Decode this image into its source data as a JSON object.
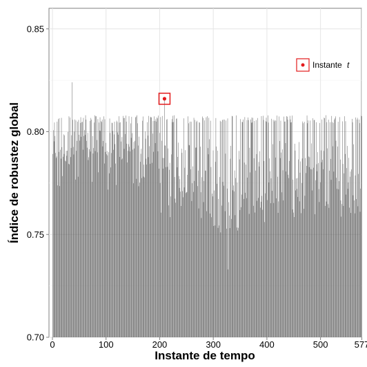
{
  "chart_data": {
    "type": "bar",
    "xlabel": "Instante de tempo",
    "ylabel": "Índice de robustez global",
    "xlim": [
      0,
      577
    ],
    "ylim": [
      0.7,
      0.86
    ],
    "x_ticks": [
      0,
      100,
      200,
      300,
      400,
      500,
      577
    ],
    "x_tick_labels": [
      "0",
      "100",
      "200",
      "300",
      "400",
      "500",
      "577"
    ],
    "y_ticks": [
      0.7,
      0.75,
      0.8,
      0.85
    ],
    "y_tick_labels": [
      "0.70",
      "0.75",
      "0.80",
      "0.85"
    ],
    "grid": true,
    "bar_color": "#595959",
    "highlight": {
      "x": 209,
      "y": 0.816,
      "color": "#e31a1c"
    },
    "legend": {
      "label_prefix": "Instante",
      "label_var": "t",
      "placement": "top-right"
    },
    "series_summary": {
      "count": 577,
      "note": "One bar per time instant; values mostly between 0.76 and 0.81, peak ~0.824 near t=37, minimum ~0.733 near t=328"
    },
    "values_by_segment": [
      {
        "from": 1,
        "to": 100,
        "typical_low": 0.784,
        "typical_high": 0.808
      },
      {
        "from": 101,
        "to": 200,
        "typical_low": 0.783,
        "typical_high": 0.808
      },
      {
        "from": 201,
        "to": 300,
        "typical_low": 0.77,
        "typical_high": 0.808
      },
      {
        "from": 301,
        "to": 400,
        "typical_low": 0.762,
        "typical_high": 0.808
      },
      {
        "from": 401,
        "to": 500,
        "typical_low": 0.77,
        "typical_high": 0.808
      },
      {
        "from": 501,
        "to": 577,
        "typical_low": 0.77,
        "typical_high": 0.808
      }
    ]
  }
}
